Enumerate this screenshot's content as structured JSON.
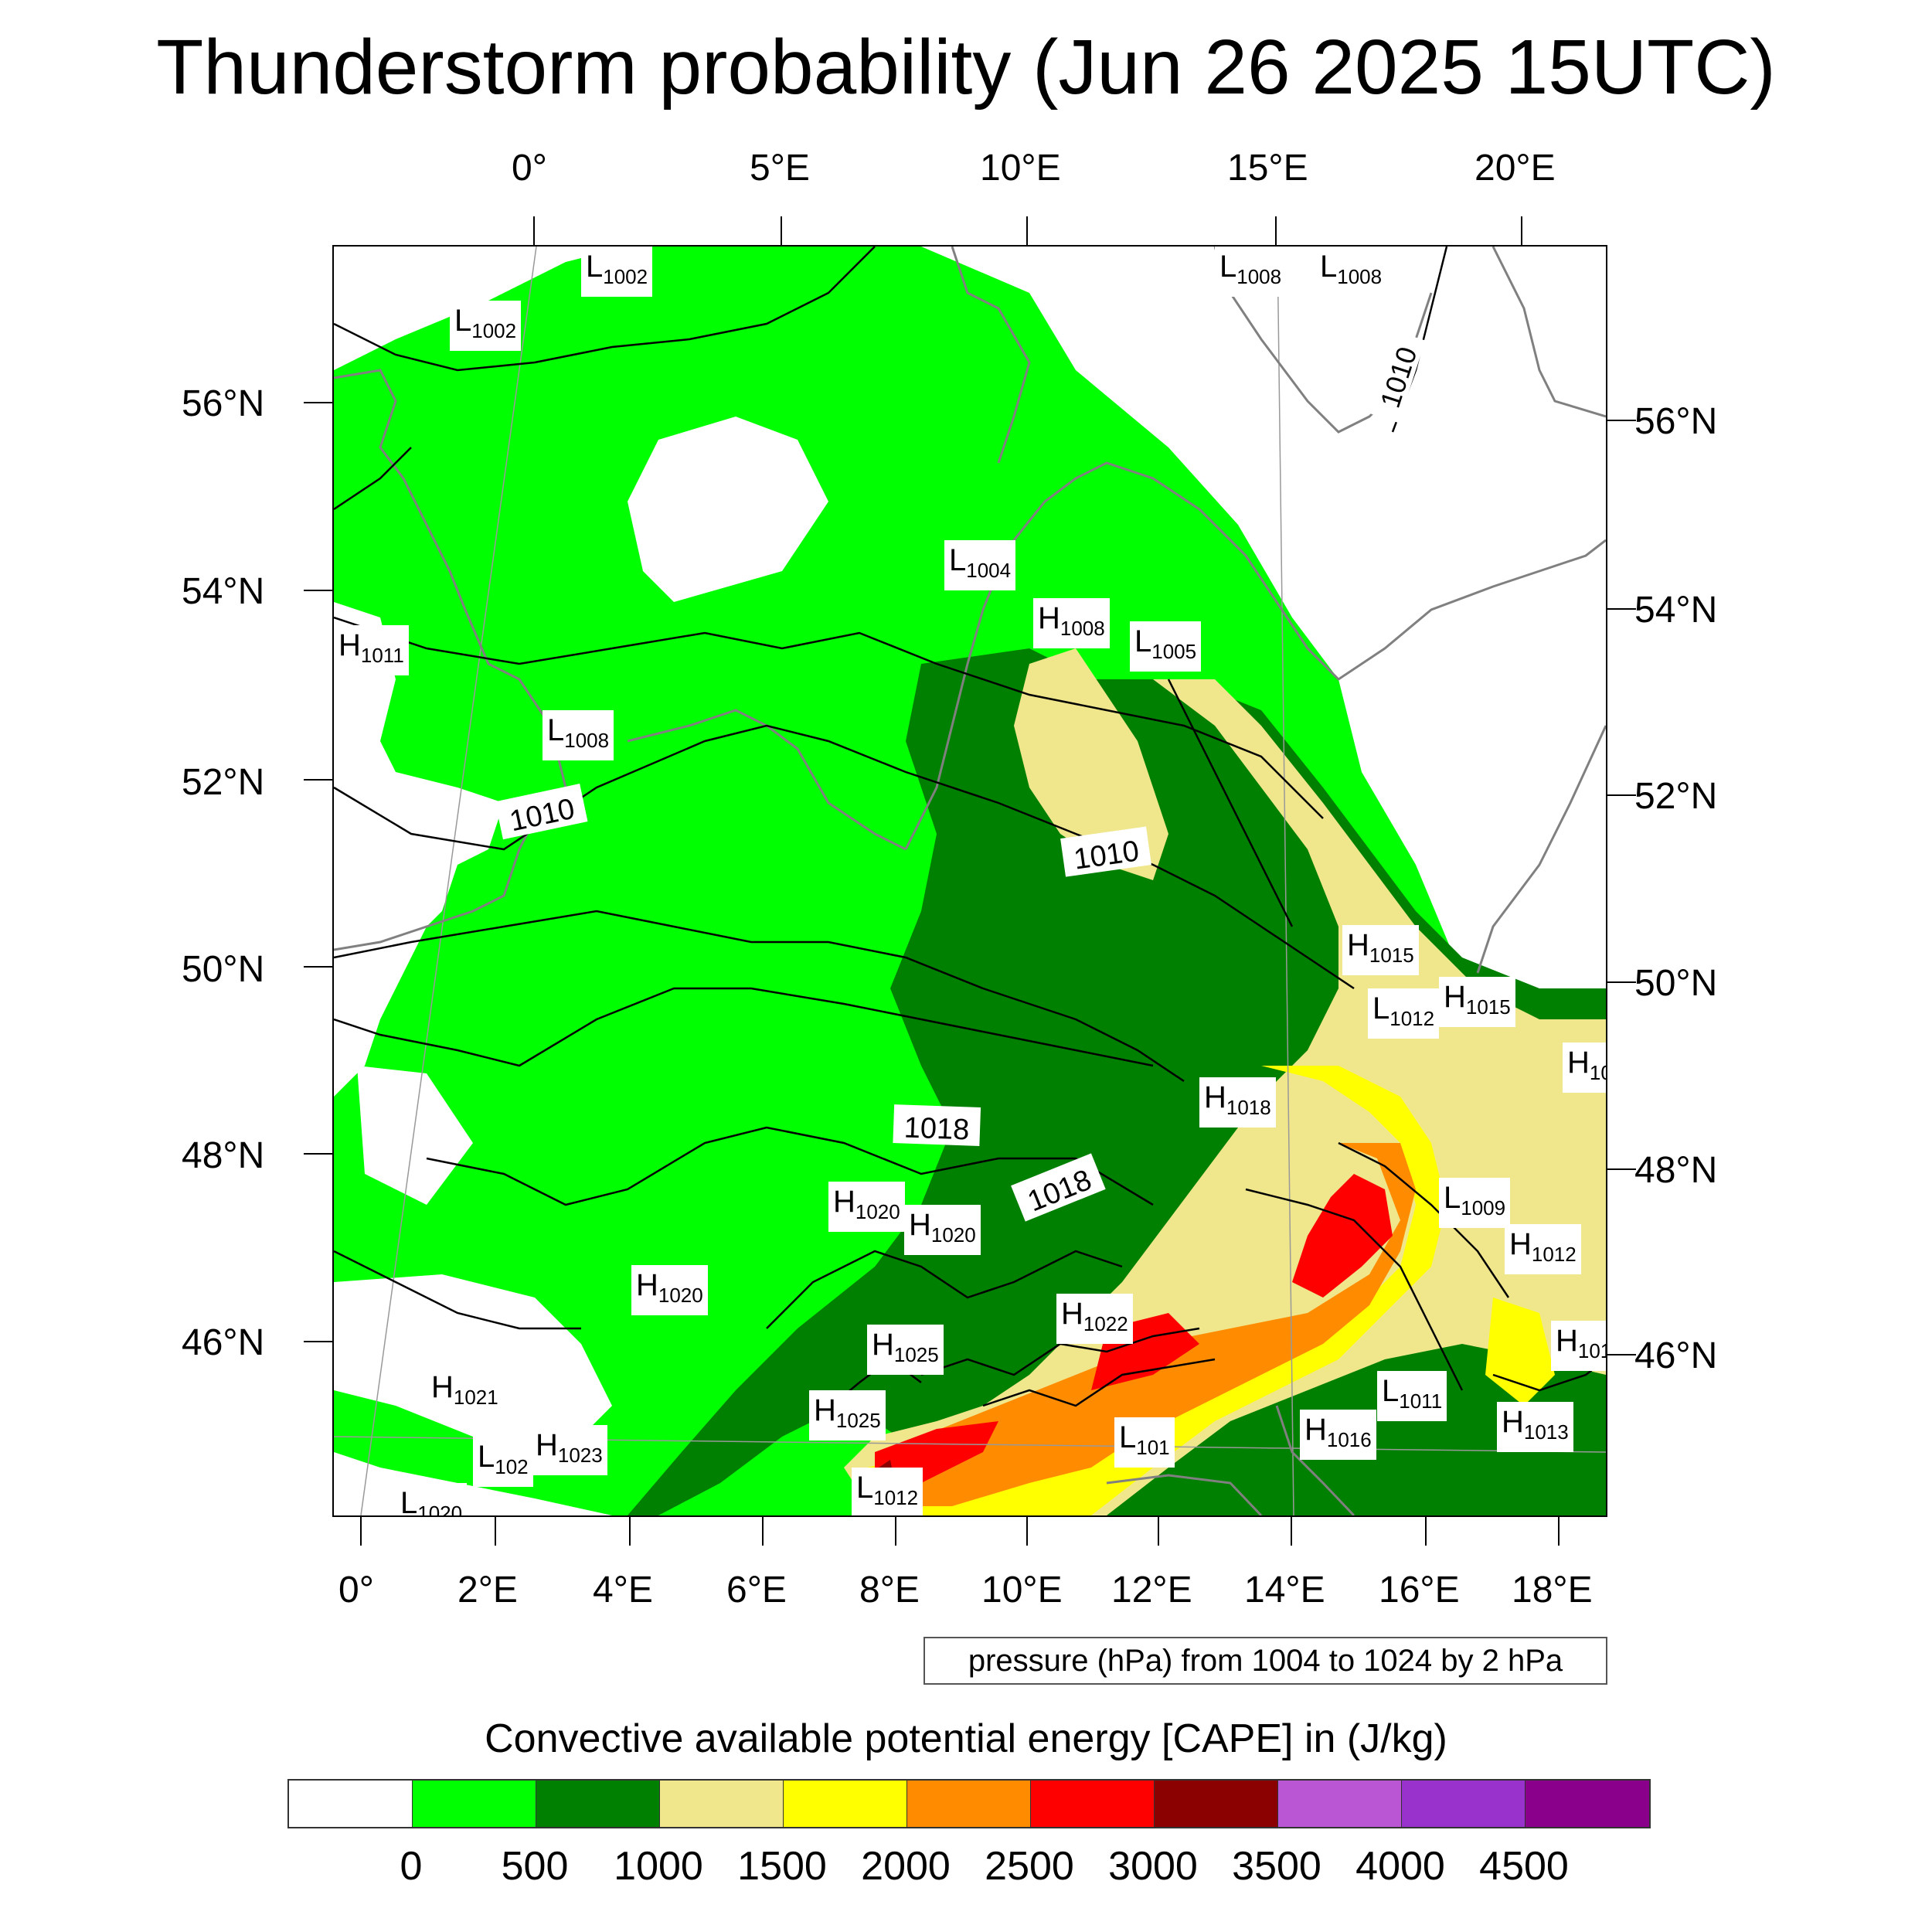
{
  "title": "Thunderstorm probability (Jun 26 2025 15UTC)",
  "top_lon_labels": [
    "0°",
    "5°E",
    "10°E",
    "15°E",
    "20°E"
  ],
  "bottom_lon_labels": [
    "0°",
    "2°E",
    "4°E",
    "6°E",
    "8°E",
    "10°E",
    "12°E",
    "14°E",
    "16°E",
    "18°E"
  ],
  "left_lat_labels": [
    "56°N",
    "54°N",
    "52°N",
    "50°N",
    "48°N",
    "46°N"
  ],
  "right_lat_labels": [
    "56°N",
    "54°N",
    "52°N",
    "50°N",
    "48°N",
    "46°N"
  ],
  "pressure_info": "pressure (hPa) from 1004 to 1024 by 2 hPa",
  "legend_title": "Convective available potential energy [CAPE] in (J/kg)",
  "colorbar": {
    "colors": [
      "#ffffff",
      "#00ff00",
      "#008000",
      "#f0e68c",
      "#ffff00",
      "#ff8c00",
      "#ff0000",
      "#8b0000",
      "#ba55d3",
      "#9932cc",
      "#8b008b"
    ],
    "labels": [
      "0",
      "500",
      "1000",
      "1500",
      "2000",
      "2500",
      "3000",
      "3500",
      "4000",
      "4500"
    ]
  },
  "pressure_labels": [
    {
      "type": "L",
      "value": "1002"
    },
    {
      "type": "L",
      "value": "1002"
    },
    {
      "type": "L",
      "value": "1008"
    },
    {
      "type": "L",
      "value": "1008"
    },
    {
      "type": "L",
      "value": "1004"
    },
    {
      "type": "H",
      "value": "1008"
    },
    {
      "type": "L",
      "value": "1005"
    },
    {
      "type": "H",
      "value": "1011"
    },
    {
      "type": "L",
      "value": "1008"
    },
    {
      "type": "H",
      "value": "1015"
    },
    {
      "type": "L",
      "value": "1012"
    },
    {
      "type": "H",
      "value": "1015"
    },
    {
      "type": "H",
      "value": "10"
    },
    {
      "type": "H",
      "value": "1018"
    },
    {
      "type": "L",
      "value": "1009"
    },
    {
      "type": "H",
      "value": "1012"
    },
    {
      "type": "H",
      "value": "1020"
    },
    {
      "type": "H",
      "value": "1020"
    },
    {
      "type": "H",
      "value": "1020"
    },
    {
      "type": "H",
      "value": "1022"
    },
    {
      "type": "H",
      "value": "1025"
    },
    {
      "type": "H",
      "value": "1025"
    },
    {
      "type": "H",
      "value": "1021"
    },
    {
      "type": "L",
      "value": "102"
    },
    {
      "type": "H",
      "value": "1023"
    },
    {
      "type": "L",
      "value": "1020"
    },
    {
      "type": "L",
      "value": "1012"
    },
    {
      "type": "L",
      "value": "101"
    },
    {
      "type": "L",
      "value": "1011"
    },
    {
      "type": "H",
      "value": "1016"
    },
    {
      "type": "H",
      "value": "1013"
    },
    {
      "type": "H",
      "value": "101"
    }
  ],
  "isobar_labels": [
    "1010",
    "1010",
    "1010",
    "1018",
    "1018"
  ]
}
